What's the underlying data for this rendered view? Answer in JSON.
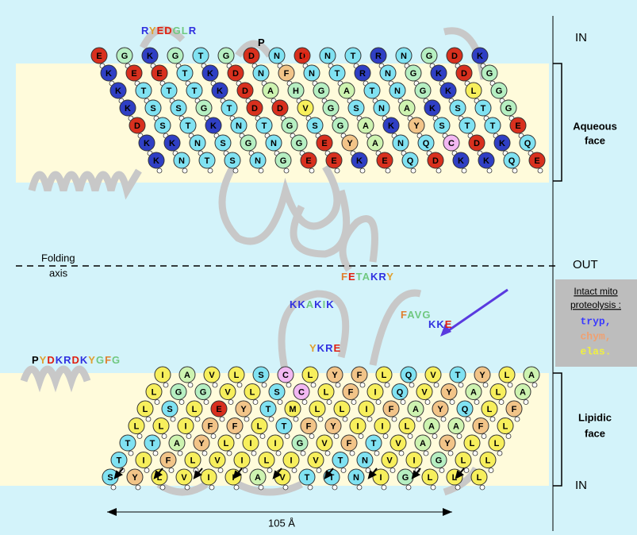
{
  "labels": {
    "in_top": "IN",
    "out": "OUT",
    "in_bottom": "IN",
    "aqueous": [
      "Aqueous",
      "face"
    ],
    "lipidic": [
      "Lipidic",
      "face"
    ],
    "folding": [
      "Folding",
      "axis"
    ],
    "distance": "105 Å"
  },
  "proteolysis": {
    "title": [
      "Intact mito",
      "proteolysis :"
    ],
    "tryp": "tryp,",
    "chym": "chym,",
    "elas": "elas."
  },
  "top": {
    "rows": [
      "EGKGTGDNDNTRNGDK",
      "KEETKDNFNTRNGKDG",
      "KTTTKDAHGATNGKLG",
      "KSSGTDDVGSNAKSTG",
      "DSTKNTGSGAKYSTTE",
      "KKNSGNGEYANQCDKQ",
      "KNTSNGEEKEQDKKQE"
    ],
    "loops": [
      "RYEDGLR",
      "P",
      "D"
    ]
  },
  "bottom": {
    "rows": [
      "IAVLSCLYFLQVTYLA",
      "LGGVLSCLFIQVYALA",
      "LSLEYTMLLIFAYQLF",
      "LLIFFLTFYIILAAFL",
      "TTAYLIIGVFTVAYLL",
      "TIFLVILIVTNVIGLL",
      "SYLVIIAVTTNIGLLL"
    ],
    "loops": [
      "FETAKRY",
      "KKAKIK",
      "YKRE",
      "FAVG",
      "KKE",
      "PYDKRDKYGFG"
    ]
  }
}
